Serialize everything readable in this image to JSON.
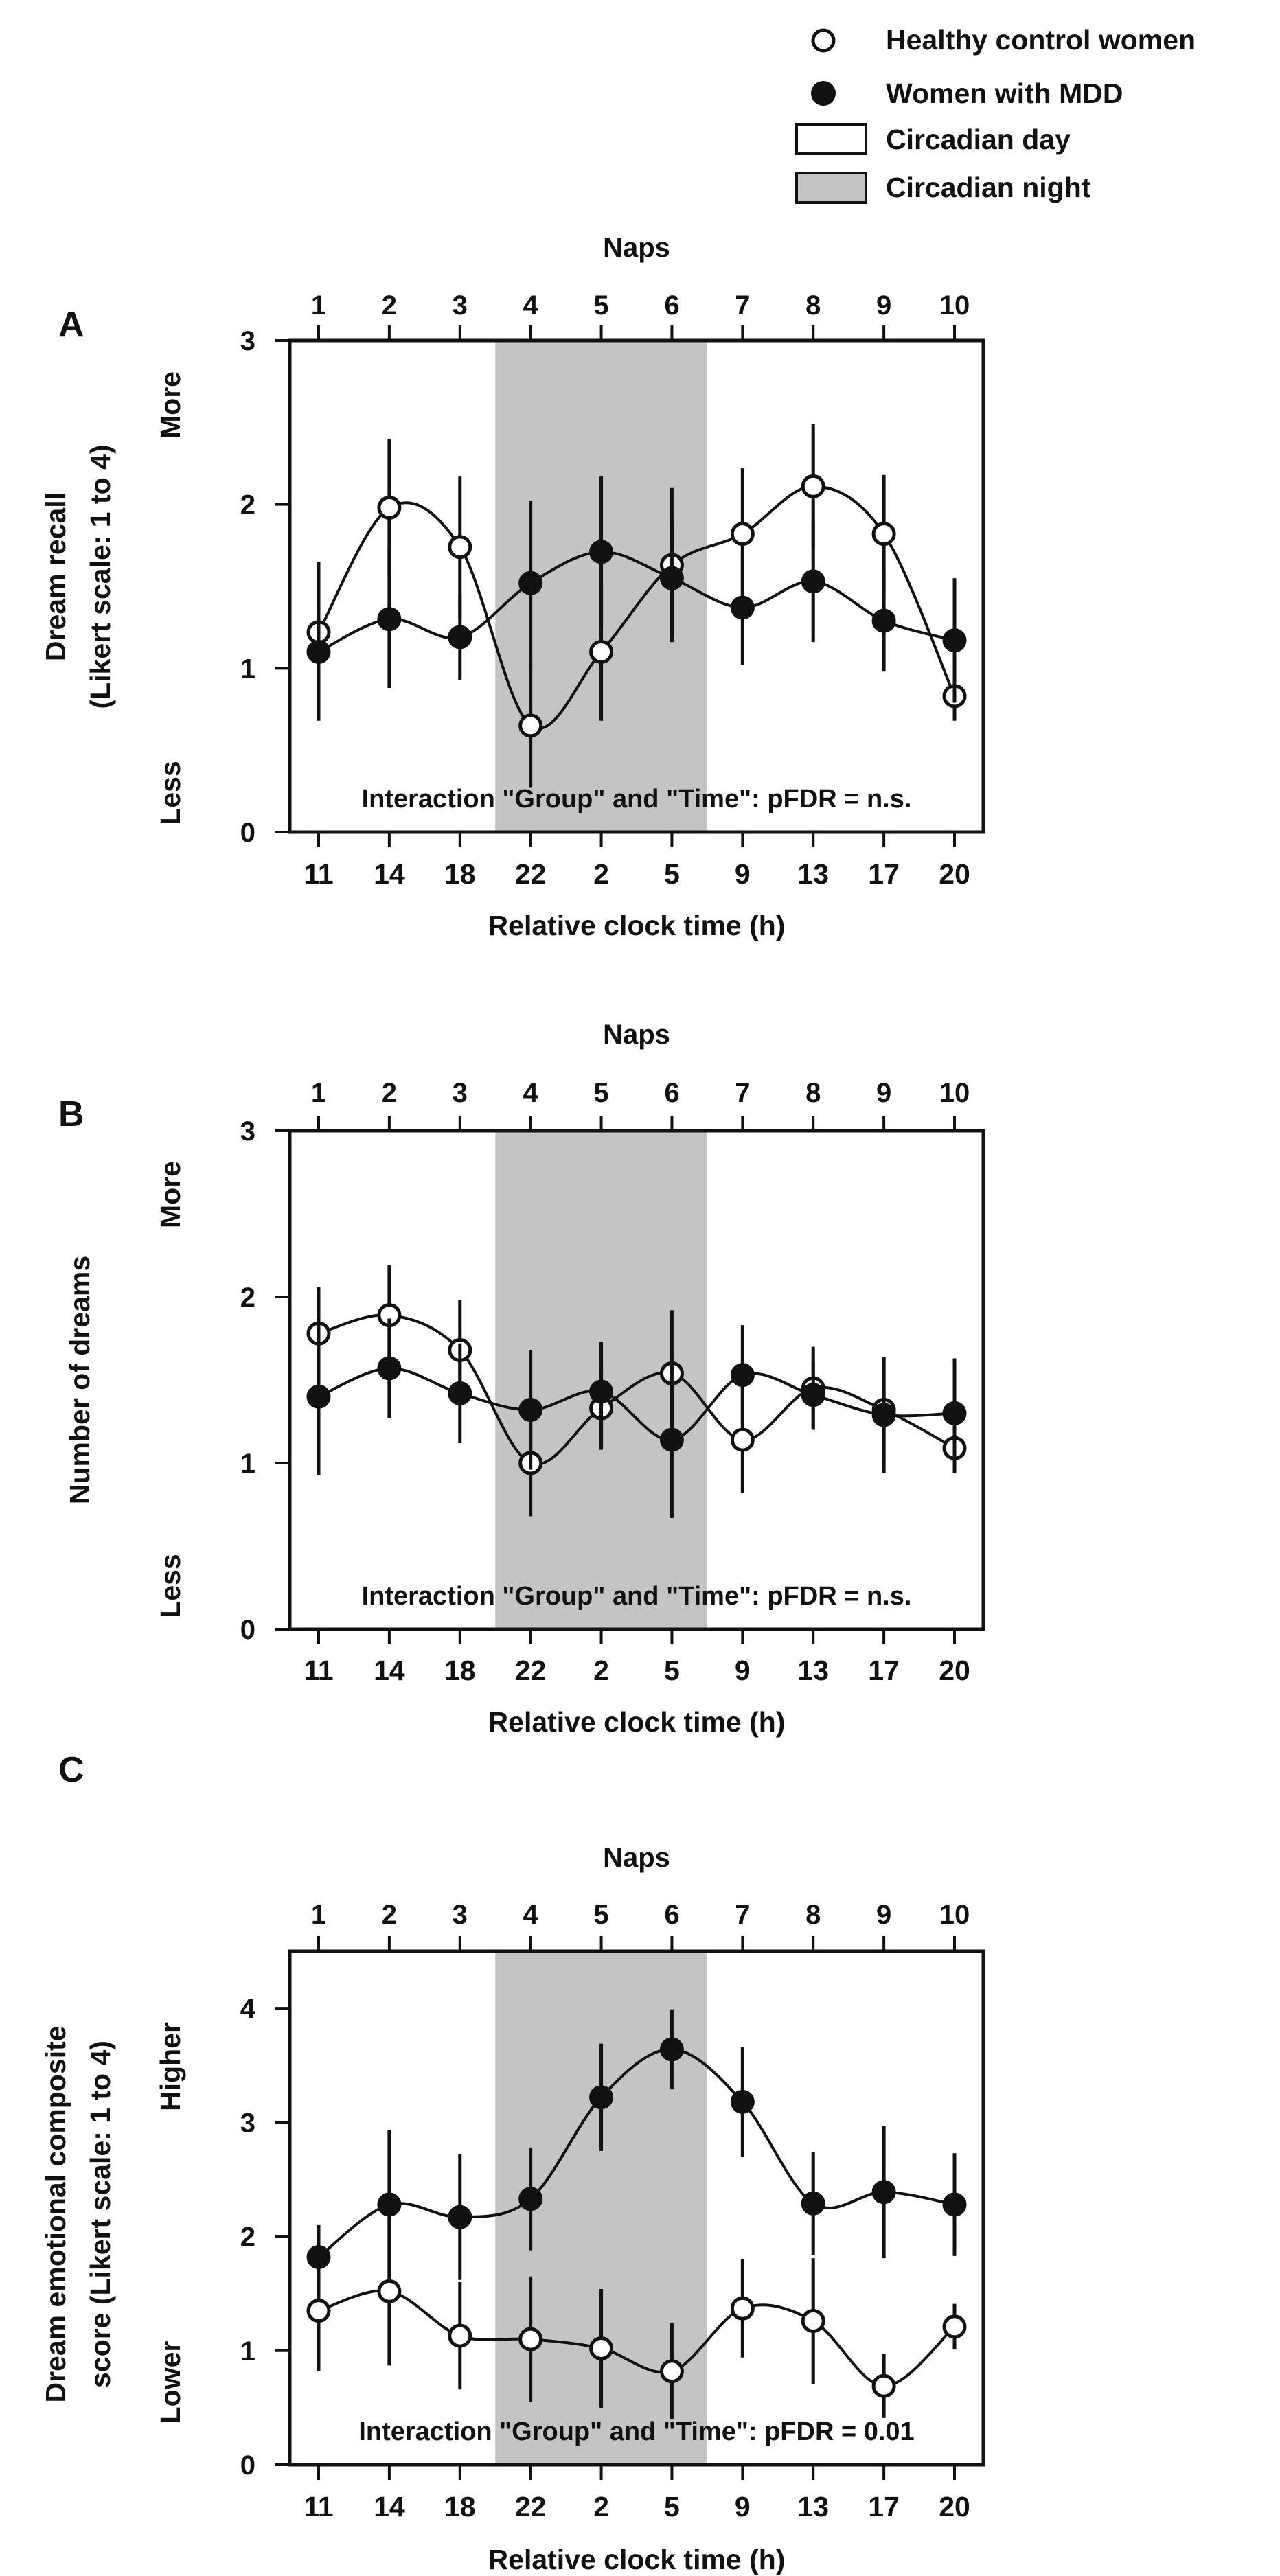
{
  "colors": {
    "night_fill": "#c4c4c4",
    "marker_open": "#ffffff",
    "marker_filled": "#111111",
    "line": "#111111"
  },
  "legend": {
    "healthy": "Healthy control women",
    "mdd": "Women with MDD",
    "day": "Circadian day",
    "night": "Circadian night"
  },
  "chart_data": [
    {
      "type": "line",
      "panel_label": "A",
      "top_axis_label": "Naps",
      "naps": [
        "1",
        "2",
        "3",
        "4",
        "5",
        "6",
        "7",
        "8",
        "9",
        "10"
      ],
      "categories": [
        "11",
        "14",
        "18",
        "22",
        "2",
        "5",
        "9",
        "13",
        "17",
        "20"
      ],
      "xlabel": "Relative clock time (h)",
      "ylabel_lines": [
        "Dream recall",
        "(Likert scale: 1 to 4)"
      ],
      "y_more": "More",
      "y_less": "Less",
      "ylim": [
        0,
        3
      ],
      "yticks": [
        0,
        1,
        2,
        3
      ],
      "night_band_naps": [
        4,
        6
      ],
      "annotation": "Interaction \"Group\" and \"Time\": pFDR = n.s.",
      "series": [
        {
          "name": "Healthy control women",
          "marker": "open",
          "values": [
            1.22,
            1.98,
            1.74,
            0.65,
            1.1,
            1.63,
            1.82,
            2.11,
            1.82,
            0.83
          ],
          "errors": [
            0.43,
            0.42,
            0.43,
            0.38,
            0.42,
            0.47,
            0.4,
            0.38,
            0.36,
            0.15
          ]
        },
        {
          "name": "Women with MDD",
          "marker": "filled",
          "values": [
            1.1,
            1.3,
            1.19,
            1.52,
            1.71,
            1.55,
            1.37,
            1.53,
            1.29,
            1.17
          ],
          "errors": [
            0.42,
            0.42,
            0.26,
            0.5,
            0.46,
            0.35,
            0.35,
            0.37,
            0.31,
            0.38
          ]
        }
      ]
    },
    {
      "type": "line",
      "panel_label": "B",
      "top_axis_label": "Naps",
      "naps": [
        "1",
        "2",
        "3",
        "4",
        "5",
        "6",
        "7",
        "8",
        "9",
        "10"
      ],
      "categories": [
        "11",
        "14",
        "18",
        "22",
        "2",
        "5",
        "9",
        "13",
        "17",
        "20"
      ],
      "xlabel": "Relative clock time (h)",
      "ylabel_lines": [
        "Number of dreams"
      ],
      "y_more": "More",
      "y_less": "Less",
      "ylim": [
        0,
        3
      ],
      "yticks": [
        0,
        1,
        2,
        3
      ],
      "night_band_naps": [
        4,
        6
      ],
      "annotation": "Interaction \"Group\" and \"Time\": pFDR = n.s.",
      "series": [
        {
          "name": "Healthy control women",
          "marker": "open",
          "values": [
            1.78,
            1.89,
            1.68,
            1.0,
            1.33,
            1.54,
            1.14,
            1.45,
            1.32,
            1.09
          ],
          "errors": [
            0.28,
            0.3,
            0.3,
            0.32,
            0.25,
            0.38,
            0.32,
            0.25,
            0.32,
            0.15
          ]
        },
        {
          "name": "Women with MDD",
          "marker": "filled",
          "values": [
            1.4,
            1.57,
            1.42,
            1.32,
            1.43,
            1.14,
            1.53,
            1.41,
            1.29,
            1.3
          ],
          "errors": [
            0.47,
            0.3,
            0.3,
            0.36,
            0.3,
            0.47,
            0.3,
            0.2,
            0.35,
            0.33
          ]
        }
      ]
    },
    {
      "type": "line",
      "panel_label": "C",
      "top_axis_label": "Naps",
      "naps": [
        "1",
        "2",
        "3",
        "4",
        "5",
        "6",
        "7",
        "8",
        "9",
        "10"
      ],
      "categories": [
        "11",
        "14",
        "18",
        "22",
        "2",
        "5",
        "9",
        "13",
        "17",
        "20"
      ],
      "xlabel": "Relative clock time (h)",
      "ylabel_lines": [
        "Dream emotional composite",
        "score (Likert scale: 1 to 4)"
      ],
      "y_more": "Higher",
      "y_less": "Lower",
      "ylim": [
        0,
        4.5
      ],
      "yticks": [
        0,
        1,
        2,
        3,
        4
      ],
      "night_band_naps": [
        4,
        6
      ],
      "annotation": "Interaction \"Group\" and \"Time\": pFDR = 0.01",
      "series": [
        {
          "name": "Healthy control women",
          "marker": "open",
          "values": [
            1.35,
            1.52,
            1.13,
            1.1,
            1.02,
            0.82,
            1.37,
            1.26,
            0.69,
            1.21
          ],
          "errors": [
            0.53,
            0.65,
            0.47,
            0.55,
            0.52,
            0.42,
            0.43,
            0.55,
            0.28,
            0.2
          ]
        },
        {
          "name": "Women with MDD",
          "marker": "filled",
          "values": [
            1.82,
            2.28,
            2.17,
            2.33,
            3.22,
            3.64,
            3.18,
            2.29,
            2.39,
            2.28
          ],
          "errors": [
            0.28,
            0.65,
            0.55,
            0.45,
            0.47,
            0.35,
            0.48,
            0.45,
            0.58,
            0.45
          ]
        }
      ]
    }
  ]
}
